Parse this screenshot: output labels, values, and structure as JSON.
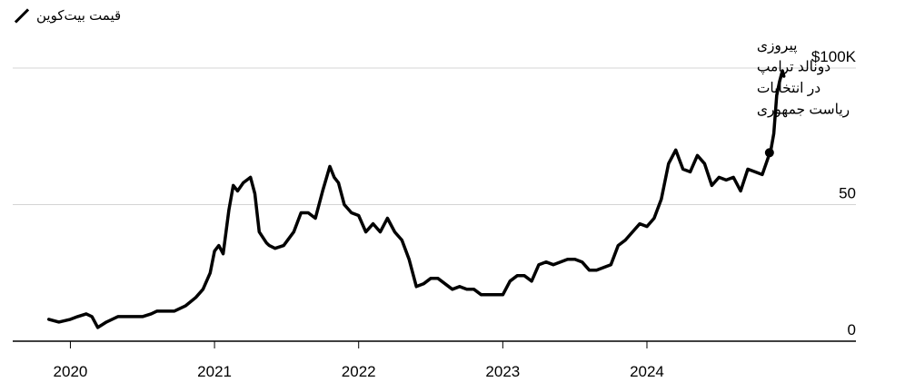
{
  "legend": {
    "label": "قیمت بیت‌کوین",
    "color": "#000000"
  },
  "annotation": {
    "lines": [
      "پیروزی",
      "دونالد ترامپ",
      "در انتخابات",
      "ریاست جمهوری"
    ]
  },
  "chart_data": {
    "type": "line",
    "title": "",
    "xlabel": "",
    "ylabel": "",
    "xlim": [
      2019.6,
      2025.45
    ],
    "ylim": [
      0,
      100
    ],
    "ytick_labels": [
      "0",
      "50",
      "$100K"
    ],
    "ytick_values": [
      0,
      50,
      100
    ],
    "xtick_labels": [
      "2020",
      "2021",
      "2022",
      "2023",
      "2024"
    ],
    "xtick_values": [
      2020,
      2021,
      2022,
      2023,
      2024
    ],
    "grid": true,
    "series": [
      {
        "name": "قیمت بیت‌کوین",
        "color": "#000000",
        "x": [
          2019.85,
          2019.92,
          2020.0,
          2020.05,
          2020.11,
          2020.15,
          2020.19,
          2020.22,
          2020.25,
          2020.33,
          2020.42,
          2020.5,
          2020.56,
          2020.6,
          2020.67,
          2020.72,
          2020.8,
          2020.87,
          2020.92,
          2020.97,
          2021.0,
          2021.03,
          2021.06,
          2021.1,
          2021.13,
          2021.16,
          2021.2,
          2021.25,
          2021.28,
          2021.31,
          2021.36,
          2021.38,
          2021.42,
          2021.48,
          2021.55,
          2021.6,
          2021.65,
          2021.7,
          2021.75,
          2021.8,
          2021.83,
          2021.86,
          2021.9,
          2021.95,
          2022.0,
          2022.05,
          2022.1,
          2022.15,
          2022.2,
          2022.25,
          2022.3,
          2022.35,
          2022.4,
          2022.45,
          2022.5,
          2022.55,
          2022.6,
          2022.65,
          2022.7,
          2022.75,
          2022.8,
          2022.85,
          2022.9,
          2023.0,
          2023.05,
          2023.1,
          2023.15,
          2023.2,
          2023.25,
          2023.3,
          2023.35,
          2023.45,
          2023.5,
          2023.55,
          2023.6,
          2023.65,
          2023.7,
          2023.75,
          2023.8,
          2023.85,
          2023.9,
          2023.95,
          2024.0,
          2024.05,
          2024.1,
          2024.15,
          2024.2,
          2024.25,
          2024.3,
          2024.35,
          2024.4,
          2024.45,
          2024.5,
          2024.55,
          2024.6,
          2024.65,
          2024.7,
          2024.75,
          2024.8,
          2024.84,
          2024.86,
          2024.88,
          2024.9,
          2024.92,
          2024.94,
          2024.95
        ],
        "y": [
          8,
          7,
          8,
          9,
          10,
          9,
          5,
          6,
          7,
          9,
          9,
          9,
          10,
          11,
          11,
          11,
          13,
          16,
          19,
          25,
          33,
          35,
          32,
          48,
          57,
          55,
          58,
          60,
          54,
          40,
          36,
          35,
          34,
          35,
          40,
          47,
          47,
          45,
          55,
          64,
          60,
          58,
          50,
          47,
          46,
          40,
          43,
          40,
          45,
          40,
          37,
          30,
          20,
          21,
          23,
          23,
          21,
          19,
          20,
          19,
          19,
          17,
          17,
          17,
          22,
          24,
          24,
          22,
          28,
          29,
          28,
          30,
          30,
          29,
          26,
          26,
          27,
          28,
          35,
          37,
          40,
          43,
          42,
          45,
          52,
          65,
          70,
          63,
          62,
          68,
          65,
          57,
          60,
          59,
          60,
          55,
          63,
          62,
          61,
          67,
          70,
          76,
          90,
          95,
          99,
          97
        ]
      }
    ],
    "annotation_point": {
      "x": 2024.85,
      "y": 69
    }
  }
}
